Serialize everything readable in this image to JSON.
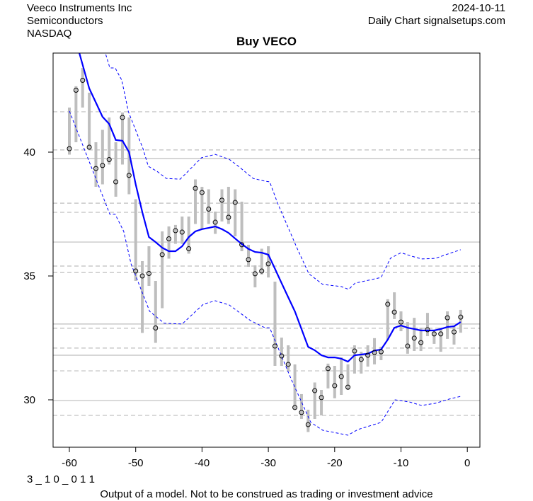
{
  "header": {
    "company": "Veeco Instruments Inc",
    "sector": "Semiconductors",
    "exchange": "NASDAQ",
    "date": "2024-10-11",
    "source": "Daily Chart signalsetups.com"
  },
  "footer": {
    "code": "3 _ 1 0 _ 0 1 1",
    "disclaimer": "Output of a model. Not to be construed as trading or investment advice"
  },
  "colors": {
    "bars": "#bebebe",
    "ma": "#0000ff",
    "bands": "#0000ff",
    "grid": "#bebebe"
  },
  "chart_data": {
    "type": "line",
    "title": "Buy VECO",
    "xlim": [
      -63,
      2
    ],
    "ylim": [
      28.1,
      44
    ],
    "x_ticks": [
      -60,
      -50,
      -40,
      -30,
      -20,
      -10,
      0
    ],
    "y_ticks": [
      30,
      35,
      40
    ],
    "grid_solid": [
      39.74,
      36.37,
      33.06,
      31.8,
      29.97
    ],
    "grid_dashed": [
      41.63,
      40.09,
      37.94,
      37.57,
      35.4,
      35.14,
      32.89,
      32.09,
      31.17,
      29.37
    ],
    "bars_hlc": [
      [
        -60,
        41.8,
        39.9,
        40.14
      ],
      [
        -59,
        42.66,
        40.4,
        42.5
      ],
      [
        -58,
        43.4,
        41.8,
        42.9
      ],
      [
        -57,
        42.4,
        40.1,
        40.2
      ],
      [
        -56,
        40.4,
        38.6,
        39.34
      ],
      [
        -55,
        40.9,
        38.7,
        39.46
      ],
      [
        -54,
        41.4,
        39.5,
        39.7
      ],
      [
        -53,
        40.4,
        38.2,
        38.8
      ],
      [
        -52,
        41.6,
        39.5,
        41.4
      ],
      [
        -51,
        41.4,
        38.3,
        39.06
      ],
      [
        -50,
        38.1,
        34.8,
        35.2
      ],
      [
        -49,
        35.6,
        32.7,
        35.0
      ],
      [
        -48,
        36.2,
        34.6,
        35.1
      ],
      [
        -47,
        34.8,
        32.3,
        32.9
      ],
      [
        -46,
        36.8,
        33.7,
        35.86
      ],
      [
        -45,
        37.0,
        35.7,
        36.5
      ],
      [
        -44,
        37.06,
        36.3,
        36.83
      ],
      [
        -43,
        37.4,
        36.3,
        36.77
      ],
      [
        -42,
        37.4,
        35.9,
        36.1
      ],
      [
        -41,
        38.9,
        37.1,
        38.54
      ],
      [
        -40,
        38.6,
        36.9,
        38.37
      ],
      [
        -39,
        38.5,
        37.1,
        37.7
      ],
      [
        -38,
        37.6,
        36.7,
        37.17
      ],
      [
        -37,
        38.5,
        37.2,
        38.06
      ],
      [
        -36,
        38.6,
        37.1,
        37.37
      ],
      [
        -35,
        38.5,
        36.6,
        37.97
      ],
      [
        -34,
        38.0,
        36.0,
        36.26
      ],
      [
        -33,
        36.26,
        35.37,
        35.66
      ],
      [
        -32,
        35.43,
        34.54,
        35.09
      ],
      [
        -31,
        36.1,
        35.06,
        35.2
      ],
      [
        -30,
        36.2,
        34.94,
        35.49
      ],
      [
        -29,
        34.77,
        31.37,
        32.17
      ],
      [
        -28,
        32.51,
        31.37,
        31.77
      ],
      [
        -27,
        32.2,
        31.14,
        31.43
      ],
      [
        -26,
        31.43,
        29.63,
        29.69
      ],
      [
        -25,
        30.23,
        29.23,
        29.49
      ],
      [
        -24,
        29.6,
        28.7,
        29.0
      ],
      [
        -23,
        30.7,
        29.23,
        30.37
      ],
      [
        -22,
        30.4,
        29.37,
        30.09
      ],
      [
        -21,
        31.46,
        30.46,
        31.26
      ],
      [
        -20,
        31.37,
        30.06,
        30.57
      ],
      [
        -19,
        31.71,
        30.2,
        30.94
      ],
      [
        -18,
        31.43,
        30.4,
        30.51
      ],
      [
        -17,
        32.2,
        31.06,
        31.97
      ],
      [
        -16,
        31.94,
        31.06,
        31.63
      ],
      [
        -15,
        32.2,
        31.34,
        31.8
      ],
      [
        -14,
        32.49,
        31.43,
        31.91
      ],
      [
        -13,
        32.14,
        31.6,
        31.94
      ],
      [
        -12,
        34.06,
        32.43,
        33.86
      ],
      [
        -11,
        34.34,
        33.26,
        33.54
      ],
      [
        -10,
        33.57,
        32.77,
        33.14
      ],
      [
        -9,
        33.14,
        31.86,
        32.17
      ],
      [
        -8,
        33.31,
        31.97,
        32.49
      ],
      [
        -7,
        32.91,
        31.97,
        32.31
      ],
      [
        -6,
        33.51,
        32.57,
        32.83
      ],
      [
        -5,
        32.8,
        32.26,
        32.66
      ],
      [
        -4,
        32.91,
        31.94,
        32.66
      ],
      [
        -3,
        33.57,
        32.46,
        33.31
      ],
      [
        -2,
        33.0,
        32.23,
        32.74
      ],
      [
        -1,
        33.63,
        32.71,
        33.34
      ]
    ],
    "moving_average": [
      [
        -58.5,
        44.0
      ],
      [
        -57,
        42.57
      ],
      [
        -56,
        42.0
      ],
      [
        -55,
        41.43
      ],
      [
        -54,
        41.14
      ],
      [
        -53,
        40.49
      ],
      [
        -52,
        40.46
      ],
      [
        -51,
        40.0
      ],
      [
        -50,
        38.7
      ],
      [
        -49,
        37.57
      ],
      [
        -48,
        36.57
      ],
      [
        -47,
        36.37
      ],
      [
        -46,
        36.14
      ],
      [
        -45,
        36.0
      ],
      [
        -44,
        36.0
      ],
      [
        -43,
        36.2
      ],
      [
        -42,
        36.57
      ],
      [
        -41,
        36.8
      ],
      [
        -40,
        36.89
      ],
      [
        -39,
        36.94
      ],
      [
        -38,
        37.0
      ],
      [
        -37,
        36.89
      ],
      [
        -36,
        36.74
      ],
      [
        -35,
        36.51
      ],
      [
        -34,
        36.29
      ],
      [
        -33,
        36.09
      ],
      [
        -32,
        35.97
      ],
      [
        -31,
        35.94
      ],
      [
        -30,
        35.86
      ],
      [
        -29,
        35.29
      ],
      [
        -28,
        34.71
      ],
      [
        -27,
        34.14
      ],
      [
        -26,
        33.57
      ],
      [
        -25,
        32.86
      ],
      [
        -24,
        32.14
      ],
      [
        -23,
        32.0
      ],
      [
        -22,
        31.8
      ],
      [
        -21,
        31.71
      ],
      [
        -20,
        31.71
      ],
      [
        -19,
        31.66
      ],
      [
        -18,
        31.54
      ],
      [
        -17,
        31.8
      ],
      [
        -16,
        31.83
      ],
      [
        -15,
        31.86
      ],
      [
        -14,
        31.99
      ],
      [
        -13,
        32.03
      ],
      [
        -12,
        32.43
      ],
      [
        -11,
        32.91
      ],
      [
        -10,
        33.0
      ],
      [
        -9,
        32.91
      ],
      [
        -8,
        32.86
      ],
      [
        -7,
        32.8
      ],
      [
        -6,
        32.8
      ],
      [
        -5,
        32.8
      ],
      [
        -4,
        32.86
      ],
      [
        -3,
        32.94
      ],
      [
        -2,
        32.97
      ],
      [
        -1,
        33.14
      ]
    ],
    "upper_band": [
      [
        -54.5,
        43.94
      ],
      [
        -53.9,
        43.4
      ],
      [
        -53.1,
        43.4
      ],
      [
        -52.1,
        42.91
      ],
      [
        -51.1,
        41.63
      ],
      [
        -48.9,
        40.14
      ],
      [
        -48.1,
        39.43
      ],
      [
        -46.8,
        39.23
      ],
      [
        -45.4,
        38.94
      ],
      [
        -43.3,
        38.91
      ],
      [
        -42.2,
        39.2
      ],
      [
        -40.1,
        39.77
      ],
      [
        -38.0,
        39.91
      ],
      [
        -35.9,
        39.71
      ],
      [
        -34.5,
        39.43
      ],
      [
        -32.3,
        38.94
      ],
      [
        -30.5,
        38.83
      ],
      [
        -29.8,
        38.8
      ],
      [
        -28.6,
        37.94
      ],
      [
        -25.7,
        36.14
      ],
      [
        -23.9,
        35.09
      ],
      [
        -21.8,
        34.66
      ],
      [
        -19.0,
        34.57
      ],
      [
        -17.9,
        34.46
      ],
      [
        -16.9,
        34.71
      ],
      [
        -13.0,
        34.94
      ],
      [
        -11.6,
        35.71
      ],
      [
        -10.0,
        35.94
      ],
      [
        -8.4,
        35.8
      ],
      [
        -6.9,
        35.69
      ],
      [
        -4.8,
        35.71
      ],
      [
        -2.7,
        35.91
      ],
      [
        -1.0,
        36.06
      ]
    ],
    "lower_band": [
      [
        -60,
        41.66
      ],
      [
        -53.9,
        37.49
      ],
      [
        -53.1,
        37.49
      ],
      [
        -51.8,
        36.8
      ],
      [
        -50.7,
        35.49
      ],
      [
        -47.9,
        33.57
      ],
      [
        -45.7,
        33.09
      ],
      [
        -43.0,
        33.06
      ],
      [
        -39.8,
        33.86
      ],
      [
        -38.0,
        34.0
      ],
      [
        -35.9,
        33.83
      ],
      [
        -32.7,
        33.2
      ],
      [
        -30.5,
        32.91
      ],
      [
        -29.8,
        32.91
      ],
      [
        -26.5,
        30.8
      ],
      [
        -23.6,
        29.09
      ],
      [
        -21.8,
        28.77
      ],
      [
        -18.0,
        28.57
      ],
      [
        -16.5,
        28.8
      ],
      [
        -13.0,
        29.09
      ],
      [
        -10.9,
        30.0
      ],
      [
        -8.7,
        29.91
      ],
      [
        -6.9,
        29.77
      ],
      [
        -4.8,
        29.86
      ],
      [
        -2.7,
        30.03
      ],
      [
        -1.0,
        30.14
      ]
    ]
  }
}
